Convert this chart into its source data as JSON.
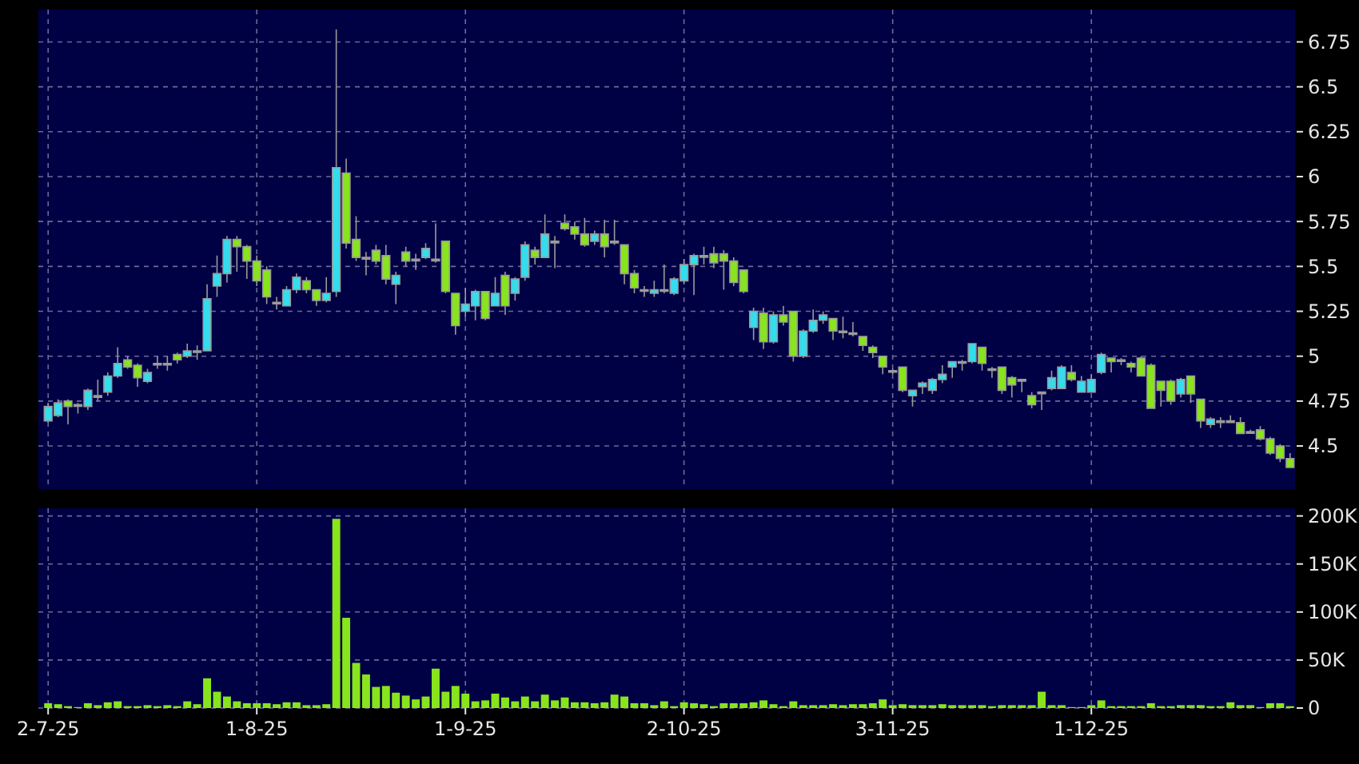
{
  "chart_data": [
    {
      "type": "candlestick",
      "tick_labels": "y",
      "grid": true,
      "ylim": [
        4.26,
        6.93
      ],
      "yticks": [
        4.5,
        4.75,
        5,
        5.25,
        5.5,
        5.75,
        6,
        6.25,
        6.5,
        6.75
      ],
      "ohlc": [
        [
          4.64,
          4.74,
          4.63,
          4.72
        ],
        [
          4.67,
          4.76,
          4.66,
          4.74
        ],
        [
          4.75,
          4.76,
          4.62,
          4.72
        ],
        [
          4.73,
          4.74,
          4.68,
          4.73
        ],
        [
          4.72,
          4.82,
          4.7,
          4.81
        ],
        [
          4.78,
          4.87,
          4.75,
          4.78
        ],
        [
          4.8,
          4.91,
          4.78,
          4.89
        ],
        [
          4.89,
          5.05,
          4.88,
          4.96
        ],
        [
          4.98,
          5.0,
          4.93,
          4.94
        ],
        [
          4.95,
          4.96,
          4.83,
          4.88
        ],
        [
          4.86,
          4.93,
          4.85,
          4.91
        ],
        [
          4.96,
          5.0,
          4.93,
          4.96
        ],
        [
          4.96,
          5.0,
          4.92,
          4.96
        ],
        [
          5.01,
          5.02,
          4.96,
          4.98
        ],
        [
          5.0,
          5.07,
          4.99,
          5.03
        ],
        [
          5.03,
          5.06,
          4.98,
          5.03
        ],
        [
          5.03,
          5.4,
          5.03,
          5.32
        ],
        [
          5.39,
          5.56,
          5.33,
          5.46
        ],
        [
          5.46,
          5.67,
          5.41,
          5.65
        ],
        [
          5.65,
          5.67,
          5.47,
          5.61
        ],
        [
          5.61,
          5.62,
          5.43,
          5.53
        ],
        [
          5.53,
          5.56,
          5.39,
          5.42
        ],
        [
          5.48,
          5.5,
          5.29,
          5.33
        ],
        [
          5.3,
          5.33,
          5.26,
          5.3
        ],
        [
          5.28,
          5.39,
          5.28,
          5.37
        ],
        [
          5.37,
          5.46,
          5.35,
          5.44
        ],
        [
          5.42,
          5.44,
          5.35,
          5.37
        ],
        [
          5.37,
          5.37,
          5.28,
          5.31
        ],
        [
          5.31,
          5.44,
          5.3,
          5.35
        ],
        [
          5.36,
          6.82,
          5.33,
          6.05
        ],
        [
          6.02,
          6.1,
          5.6,
          5.63
        ],
        [
          5.65,
          5.78,
          5.53,
          5.55
        ],
        [
          5.55,
          5.58,
          5.45,
          5.55
        ],
        [
          5.59,
          5.62,
          5.51,
          5.53
        ],
        [
          5.56,
          5.62,
          5.4,
          5.43
        ],
        [
          5.4,
          5.47,
          5.29,
          5.45
        ],
        [
          5.58,
          5.61,
          5.5,
          5.53
        ],
        [
          5.54,
          5.57,
          5.48,
          5.54
        ],
        [
          5.55,
          5.63,
          5.54,
          5.6
        ],
        [
          5.54,
          5.74,
          5.52,
          5.54
        ],
        [
          5.64,
          5.64,
          5.35,
          5.36
        ],
        [
          5.35,
          5.35,
          5.12,
          5.17
        ],
        [
          5.25,
          5.38,
          5.22,
          5.29
        ],
        [
          5.28,
          5.37,
          5.2,
          5.36
        ],
        [
          5.36,
          5.36,
          5.2,
          5.21
        ],
        [
          5.28,
          5.44,
          5.28,
          5.35
        ],
        [
          5.45,
          5.47,
          5.23,
          5.28
        ],
        [
          5.35,
          5.44,
          5.31,
          5.43
        ],
        [
          5.44,
          5.64,
          5.42,
          5.62
        ],
        [
          5.59,
          5.61,
          5.51,
          5.55
        ],
        [
          5.55,
          5.79,
          5.55,
          5.68
        ],
        [
          5.64,
          5.67,
          5.49,
          5.64
        ],
        [
          5.74,
          5.79,
          5.7,
          5.71
        ],
        [
          5.72,
          5.75,
          5.65,
          5.68
        ],
        [
          5.68,
          5.77,
          5.61,
          5.62
        ],
        [
          5.64,
          5.7,
          5.62,
          5.68
        ],
        [
          5.68,
          5.76,
          5.55,
          5.61
        ],
        [
          5.64,
          5.76,
          5.62,
          5.64
        ],
        [
          5.62,
          5.62,
          5.4,
          5.46
        ],
        [
          5.46,
          5.48,
          5.35,
          5.38
        ],
        [
          5.37,
          5.39,
          5.33,
          5.37
        ],
        [
          5.35,
          5.42,
          5.33,
          5.37
        ],
        [
          5.37,
          5.51,
          5.35,
          5.37
        ],
        [
          5.35,
          5.44,
          5.34,
          5.43
        ],
        [
          5.42,
          5.54,
          5.4,
          5.51
        ],
        [
          5.51,
          5.57,
          5.34,
          5.56
        ],
        [
          5.56,
          5.61,
          5.51,
          5.56
        ],
        [
          5.57,
          5.61,
          5.49,
          5.52
        ],
        [
          5.57,
          5.59,
          5.37,
          5.53
        ],
        [
          5.53,
          5.55,
          5.39,
          5.41
        ],
        [
          5.48,
          5.48,
          5.35,
          5.36
        ],
        [
          5.16,
          5.27,
          5.09,
          5.25
        ],
        [
          5.24,
          5.27,
          5.04,
          5.08
        ],
        [
          5.08,
          5.25,
          5.07,
          5.23
        ],
        [
          5.23,
          5.28,
          5.17,
          5.19
        ],
        [
          5.25,
          5.25,
          4.97,
          5.0
        ],
        [
          5.0,
          5.15,
          4.99,
          5.14
        ],
        [
          5.14,
          5.26,
          5.13,
          5.2
        ],
        [
          5.2,
          5.25,
          5.18,
          5.23
        ],
        [
          5.21,
          5.21,
          5.09,
          5.14
        ],
        [
          5.14,
          5.22,
          5.1,
          5.14
        ],
        [
          5.13,
          5.19,
          5.11,
          5.13
        ],
        [
          5.11,
          5.11,
          5.03,
          5.06
        ],
        [
          5.05,
          5.06,
          4.99,
          5.02
        ],
        [
          5.0,
          5.0,
          4.9,
          4.94
        ],
        [
          4.92,
          4.93,
          4.9,
          4.92
        ],
        [
          4.94,
          4.94,
          4.8,
          4.81
        ],
        [
          4.78,
          4.81,
          4.72,
          4.81
        ],
        [
          4.83,
          4.86,
          4.79,
          4.85
        ],
        [
          4.81,
          4.88,
          4.79,
          4.87
        ],
        [
          4.87,
          4.95,
          4.85,
          4.9
        ],
        [
          4.94,
          4.97,
          4.88,
          4.97
        ],
        [
          4.97,
          4.98,
          4.92,
          4.97
        ],
        [
          4.97,
          5.07,
          4.96,
          5.07
        ],
        [
          5.05,
          5.05,
          4.92,
          4.96
        ],
        [
          4.93,
          4.94,
          4.88,
          4.93
        ],
        [
          4.94,
          4.94,
          4.79,
          4.81
        ],
        [
          4.88,
          4.89,
          4.77,
          4.84
        ],
        [
          4.87,
          4.87,
          4.8,
          4.87
        ],
        [
          4.78,
          4.8,
          4.71,
          4.73
        ],
        [
          4.8,
          4.8,
          4.7,
          4.8
        ],
        [
          4.82,
          4.92,
          4.81,
          4.88
        ],
        [
          4.82,
          4.95,
          4.82,
          4.94
        ],
        [
          4.91,
          4.95,
          4.86,
          4.87
        ],
        [
          4.8,
          4.89,
          4.8,
          4.86
        ],
        [
          4.8,
          4.9,
          4.8,
          4.87
        ],
        [
          4.91,
          5.02,
          4.9,
          5.01
        ],
        [
          4.99,
          4.99,
          4.91,
          4.97
        ],
        [
          4.98,
          4.99,
          4.95,
          4.98
        ],
        [
          4.96,
          4.97,
          4.91,
          4.94
        ],
        [
          4.99,
          5.0,
          4.89,
          4.89
        ],
        [
          4.95,
          4.96,
          4.71,
          4.71
        ],
        [
          4.86,
          4.86,
          4.72,
          4.81
        ],
        [
          4.86,
          4.87,
          4.73,
          4.75
        ],
        [
          4.79,
          4.88,
          4.77,
          4.87
        ],
        [
          4.89,
          4.89,
          4.74,
          4.79
        ],
        [
          4.76,
          4.76,
          4.6,
          4.64
        ],
        [
          4.62,
          4.66,
          4.6,
          4.65
        ],
        [
          4.64,
          4.66,
          4.6,
          4.64
        ],
        [
          4.64,
          4.67,
          4.63,
          4.64
        ],
        [
          4.63,
          4.66,
          4.57,
          4.57
        ],
        [
          4.58,
          4.59,
          4.57,
          4.58
        ],
        [
          4.59,
          4.61,
          4.53,
          4.54
        ],
        [
          4.54,
          4.55,
          4.45,
          4.46
        ],
        [
          4.5,
          4.51,
          4.41,
          4.43
        ],
        [
          4.43,
          4.46,
          4.38,
          4.38
        ]
      ],
      "colors": [
        "#33ddee",
        "#33ddee",
        "#88e41c",
        "#a0a0a0",
        "#33ddee",
        "#a0a0a0",
        "#33ddee",
        "#33ddee",
        "#88e41c",
        "#88e41c",
        "#33ddee",
        "#a0a0a0",
        "#a0a0a0",
        "#88e41c",
        "#33ddee",
        "#a0a0a0",
        "#33ddee",
        "#33ddee",
        "#33ddee",
        "#88e41c",
        "#88e41c",
        "#88e41c",
        "#88e41c",
        "#a0a0a0",
        "#33ddee",
        "#33ddee",
        "#88e41c",
        "#88e41c",
        "#33ddee",
        "#33ddee",
        "#88e41c",
        "#88e41c",
        "#a0a0a0",
        "#88e41c",
        "#88e41c",
        "#33ddee",
        "#88e41c",
        "#a0a0a0",
        "#33ddee",
        "#a0a0a0",
        "#88e41c",
        "#88e41c",
        "#33ddee",
        "#33ddee",
        "#88e41c",
        "#33ddee",
        "#88e41c",
        "#33ddee",
        "#33ddee",
        "#88e41c",
        "#33ddee",
        "#a0a0a0",
        "#88e41c",
        "#88e41c",
        "#88e41c",
        "#33ddee",
        "#88e41c",
        "#a0a0a0",
        "#88e41c",
        "#88e41c",
        "#a0a0a0",
        "#33ddee",
        "#a0a0a0",
        "#33ddee",
        "#33ddee",
        "#33ddee",
        "#a0a0a0",
        "#88e41c",
        "#88e41c",
        "#88e41c",
        "#88e41c",
        "#33ddee",
        "#88e41c",
        "#33ddee",
        "#88e41c",
        "#88e41c",
        "#33ddee",
        "#33ddee",
        "#33ddee",
        "#88e41c",
        "#a0a0a0",
        "#a0a0a0",
        "#88e41c",
        "#88e41c",
        "#88e41c",
        "#a0a0a0",
        "#88e41c",
        "#33ddee",
        "#33ddee",
        "#33ddee",
        "#33ddee",
        "#33ddee",
        "#a0a0a0",
        "#33ddee",
        "#88e41c",
        "#a0a0a0",
        "#88e41c",
        "#88e41c",
        "#a0a0a0",
        "#88e41c",
        "#a0a0a0",
        "#33ddee",
        "#33ddee",
        "#88e41c",
        "#33ddee",
        "#33ddee",
        "#33ddee",
        "#88e41c",
        "#a0a0a0",
        "#88e41c",
        "#88e41c",
        "#88e41c",
        "#88e41c",
        "#88e41c",
        "#33ddee",
        "#88e41c",
        "#88e41c",
        "#33ddee",
        "#a0a0a0",
        "#a0a0a0",
        "#88e41c",
        "#a0a0a0",
        "#88e41c",
        "#88e41c",
        "#88e41c",
        "#88e41c"
      ]
    },
    {
      "type": "bar",
      "grid": true,
      "ylim": [
        0,
        208000
      ],
      "yticks": [
        0,
        {
          "value": 50000,
          "label": "50K"
        },
        {
          "value": 100000,
          "label": "100K"
        },
        {
          "value": 150000,
          "label": "150K"
        },
        {
          "value": 200000,
          "label": "200K"
        }
      ],
      "color": "#88e41c",
      "categories": [
        "2-7-25",
        null,
        null,
        null,
        null,
        null,
        null,
        null,
        null,
        null,
        null,
        null,
        null,
        null,
        null,
        null,
        null,
        null,
        null,
        null,
        null,
        "1-8-25",
        null,
        null,
        null,
        null,
        null,
        null,
        null,
        null,
        null,
        null,
        null,
        null,
        null,
        null,
        null,
        null,
        null,
        null,
        null,
        null,
        "1-9-25",
        null,
        null,
        null,
        null,
        null,
        null,
        null,
        null,
        null,
        null,
        null,
        null,
        null,
        null,
        null,
        null,
        null,
        null,
        null,
        null,
        null,
        "2-10-25",
        null,
        null,
        null,
        null,
        null,
        null,
        null,
        null,
        null,
        null,
        null,
        null,
        null,
        null,
        null,
        null,
        null,
        null,
        null,
        null,
        "3-11-25",
        null,
        null,
        null,
        null,
        null,
        null,
        null,
        null,
        null,
        null,
        null,
        null,
        null,
        null,
        null,
        null,
        null,
        null,
        null,
        "1-12-25",
        null,
        null,
        null,
        null,
        null,
        null,
        null,
        null,
        null,
        null,
        null,
        null,
        null,
        null,
        null,
        null,
        null,
        null,
        null,
        null
      ],
      "values": [
        5000,
        4000,
        2000,
        1000,
        5000,
        3000,
        6000,
        7000,
        2000,
        2000,
        3000,
        2000,
        3000,
        2000,
        7000,
        4000,
        31000,
        17000,
        12000,
        7000,
        5000,
        5000,
        5000,
        4000,
        6000,
        6000,
        3000,
        3000,
        4000,
        197000,
        94000,
        47000,
        35000,
        22000,
        23000,
        16000,
        13000,
        9000,
        12000,
        41000,
        17000,
        23000,
        15000,
        7000,
        8000,
        15000,
        11000,
        7000,
        12000,
        7000,
        14000,
        8000,
        11000,
        6000,
        6000,
        5000,
        6000,
        14000,
        12000,
        5000,
        5000,
        3000,
        7000,
        2000,
        6000,
        5000,
        4000,
        2000,
        5000,
        5000,
        5000,
        6000,
        8000,
        4000,
        2000,
        7000,
        3000,
        3000,
        3000,
        4000,
        3000,
        4000,
        4000,
        5000,
        9000,
        3000,
        4000,
        3000,
        3000,
        3000,
        4000,
        3000,
        3000,
        3000,
        3000,
        2000,
        3000,
        3000,
        3000,
        3000,
        17000,
        3000,
        3000,
        1000,
        1000,
        3000,
        8000,
        2000,
        2000,
        2000,
        2000,
        5000,
        2000,
        2000,
        3000,
        3000,
        3000,
        2000,
        2000,
        6000,
        3000,
        3000,
        1000,
        5000,
        5000,
        2000
      ]
    }
  ]
}
